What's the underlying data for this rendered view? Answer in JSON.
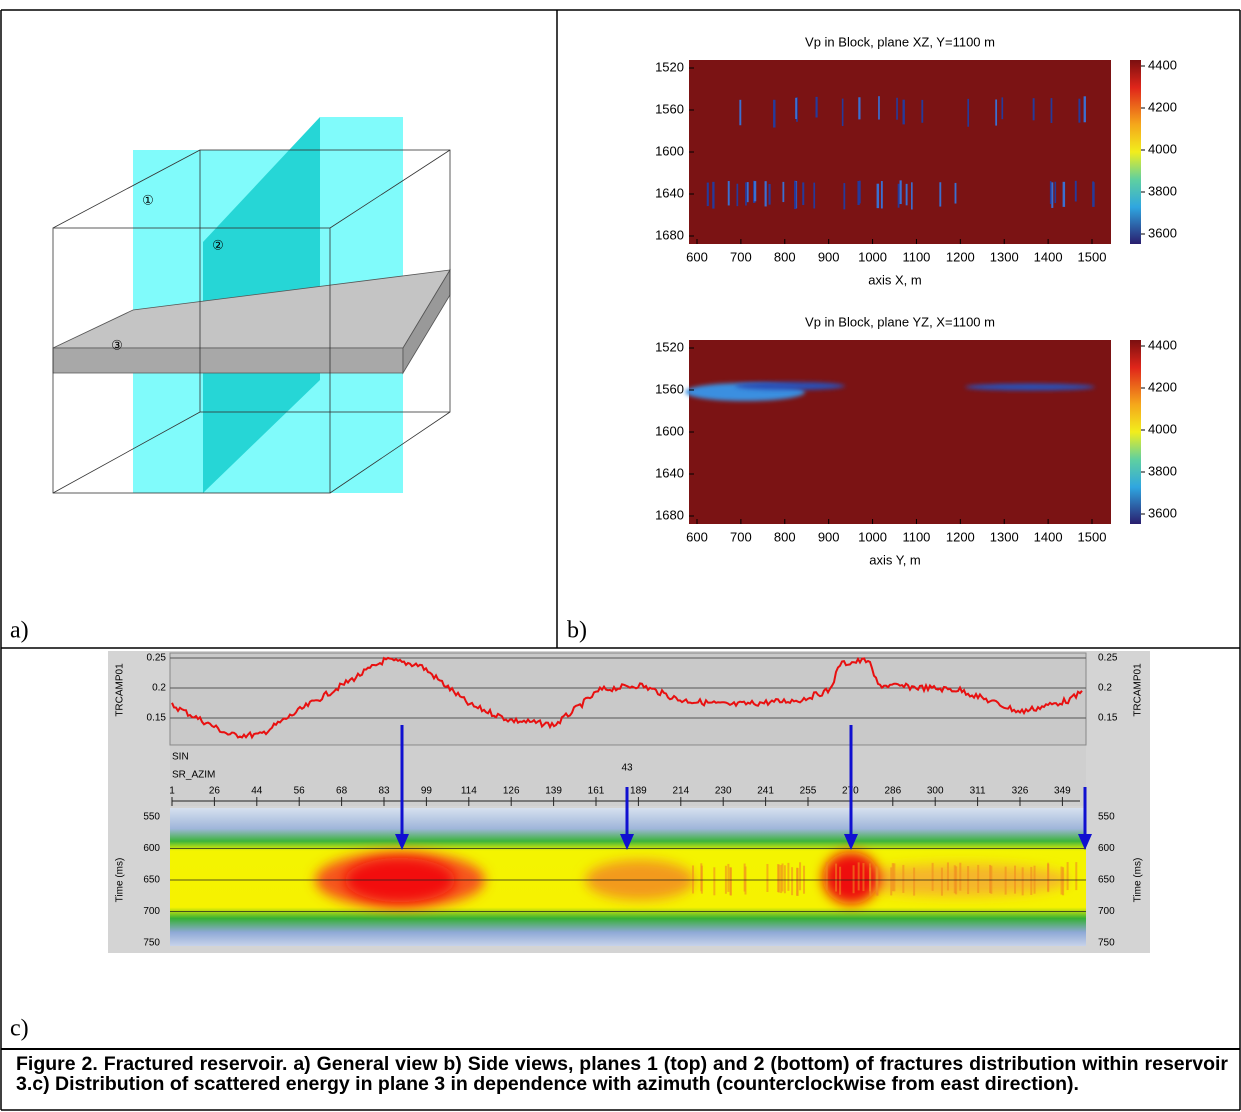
{
  "panel_a": {
    "label": "a)",
    "markers": [
      "①",
      "②",
      "③"
    ]
  },
  "panel_b": {
    "label": "b)",
    "plots": [
      {
        "title": "Vp in Block, plane XZ, Y=1100 m",
        "x_label": "axis X, m",
        "x_ticks": [
          600,
          700,
          800,
          900,
          1000,
          1100,
          1200,
          1300,
          1400,
          1500
        ],
        "y_ticks": [
          1520,
          1560,
          1600,
          1640,
          1680
        ],
        "colorbar_ticks": [
          4400,
          4200,
          4000,
          3800,
          3600
        ]
      },
      {
        "title": "Vp in Block, plane YZ, X=1100 m",
        "x_label": "axis Y, m",
        "x_ticks": [
          600,
          700,
          800,
          900,
          1000,
          1100,
          1200,
          1300,
          1400,
          1500
        ],
        "y_ticks": [
          1520,
          1560,
          1600,
          1640,
          1680
        ],
        "colorbar_ticks": [
          4400,
          4200,
          4000,
          3800,
          3600
        ]
      }
    ]
  },
  "panel_c": {
    "label": "c)",
    "trace_label": "TRCAMP01",
    "trace_ticks": [
      0.25,
      0.2,
      0.15
    ],
    "header_labels": [
      "SIN",
      "SR_AZIM"
    ],
    "header_value": "43",
    "azimuth_ticks": [
      1,
      26,
      44,
      56,
      68,
      83,
      99,
      114,
      126,
      139,
      161,
      189,
      214,
      230,
      241,
      255,
      270,
      286,
      300,
      311,
      326,
      349
    ],
    "time_label": "Time (ms)",
    "time_ticks": [
      550,
      600,
      650,
      700,
      750
    ]
  },
  "caption": "Figure 2. Fractured reservoir. a) General view b) Side views, planes 1 (top) and 2 (bottom) of fractures distribution within reservoir 3.c) Distribution of scattered energy in plane 3 in dependence with azimuth (counterclockwise from east direction)."
}
